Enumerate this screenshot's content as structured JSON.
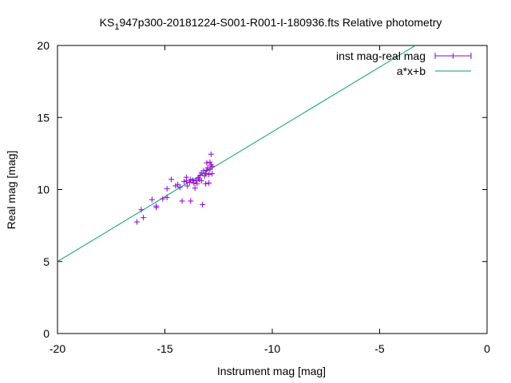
{
  "chart_data": {
    "type": "scatter",
    "title_prefix": "KS",
    "title_subscript": "1",
    "title_rest": "947p300-20181224-S001-R001-I-180936.fts Relative photometry",
    "xlabel": "Instrument mag [mag]",
    "ylabel": "Real mag [mag]",
    "xlim": [
      -20,
      0
    ],
    "ylim": [
      0,
      20
    ],
    "x_ticks": [
      -20,
      -15,
      -10,
      -5,
      0
    ],
    "y_ticks": [
      0,
      5,
      10,
      15,
      20
    ],
    "grid": false,
    "legend_position": "top-right",
    "colors": {
      "points": "#9400d3",
      "fit": "#009e73",
      "axes": "#000000"
    },
    "series": [
      {
        "name": "inst mag-real mag",
        "kind": "points",
        "points": [
          [
            -16.3,
            7.75
          ],
          [
            -16.1,
            8.6
          ],
          [
            -16.0,
            8.05
          ],
          [
            -15.6,
            9.3
          ],
          [
            -15.4,
            8.75
          ],
          [
            -15.4,
            8.85
          ],
          [
            -15.1,
            9.35
          ],
          [
            -14.9,
            9.45
          ],
          [
            -14.9,
            10.05
          ],
          [
            -14.7,
            10.7
          ],
          [
            -14.5,
            10.25
          ],
          [
            -14.4,
            10.35
          ],
          [
            -14.3,
            10.15
          ],
          [
            -14.2,
            9.2
          ],
          [
            -14.1,
            10.55
          ],
          [
            -14.0,
            10.85
          ],
          [
            -14.0,
            10.6
          ],
          [
            -13.95,
            10.25
          ],
          [
            -13.85,
            10.5
          ],
          [
            -13.8,
            10.7
          ],
          [
            -13.8,
            9.2
          ],
          [
            -13.7,
            10.65
          ],
          [
            -13.65,
            10.45
          ],
          [
            -13.6,
            10.1
          ],
          [
            -13.55,
            10.6
          ],
          [
            -13.5,
            10.4
          ],
          [
            -13.45,
            10.8
          ],
          [
            -13.4,
            10.7
          ],
          [
            -13.35,
            11.0
          ],
          [
            -13.3,
            11.15
          ],
          [
            -13.3,
            10.6
          ],
          [
            -13.25,
            8.95
          ],
          [
            -13.2,
            11.3
          ],
          [
            -13.15,
            10.95
          ],
          [
            -13.1,
            11.1
          ],
          [
            -13.1,
            10.4
          ],
          [
            -13.05,
            11.35
          ],
          [
            -13.05,
            11.85
          ],
          [
            -13.0,
            11.5
          ],
          [
            -12.95,
            11.05
          ],
          [
            -12.95,
            10.45
          ],
          [
            -12.9,
            11.4
          ],
          [
            -12.9,
            11.9
          ],
          [
            -12.85,
            11.7
          ],
          [
            -12.85,
            12.45
          ],
          [
            -12.8,
            11.6
          ],
          [
            -12.8,
            11.1
          ]
        ]
      },
      {
        "name": "a*x+b",
        "kind": "line",
        "slope": 0.9,
        "intercept": 23.0
      }
    ]
  }
}
